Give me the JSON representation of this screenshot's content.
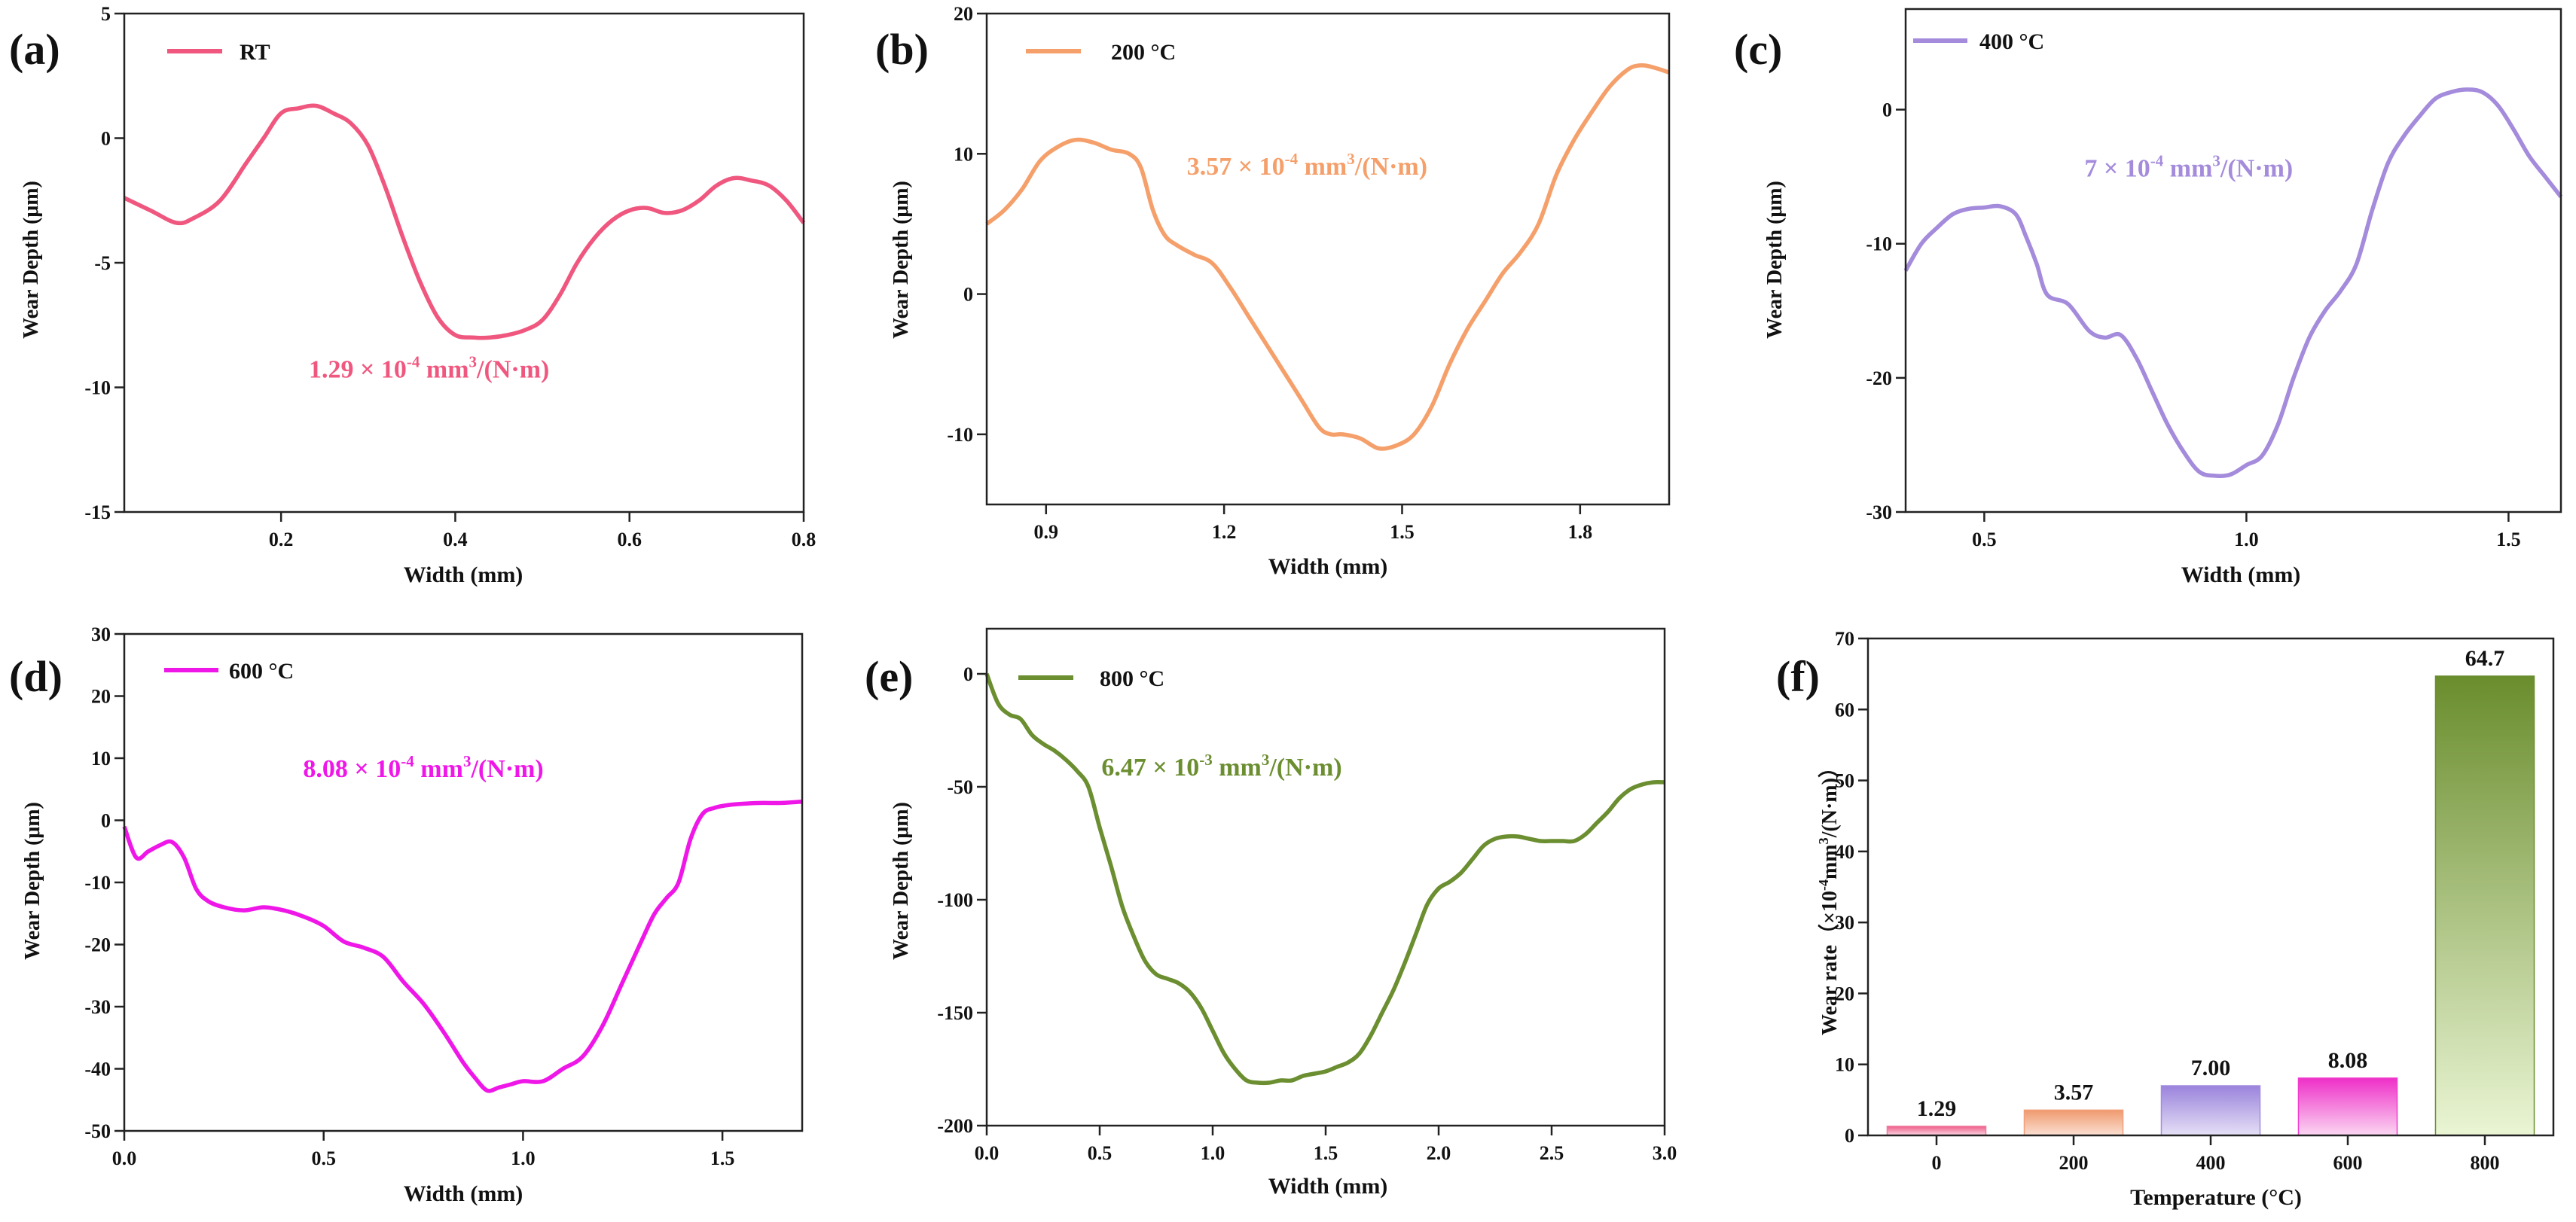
{
  "chart_data": [
    {
      "id": "a",
      "panel_label": "(a)",
      "type": "line",
      "title": "",
      "xlabel": "Width (mm)",
      "ylabel": "Wear Depth (μm)",
      "xlim": [
        0.02,
        0.8
      ],
      "ylim": [
        -15,
        5
      ],
      "xticks": [
        0.2,
        0.4,
        0.6,
        0.8
      ],
      "xtick_labels": [
        "0.2",
        "0.4",
        "0.6",
        "0.8"
      ],
      "yticks": [
        5,
        0,
        -5,
        -10,
        -15
      ],
      "ytick_labels": [
        "5",
        "0",
        "-5",
        "-10",
        "-15"
      ],
      "legend": "RT",
      "legend_position": "top-left",
      "annotation": {
        "mantissa": "1.29 × 10",
        "exp": "-4",
        "unit": " mm",
        "unit_exp": "3",
        "tail": "/(N·m)",
        "x": 0.37,
        "y": -9.6
      },
      "color": "#f0577f",
      "series": [
        {
          "name": "RT",
          "x": [
            0.02,
            0.05,
            0.08,
            0.1,
            0.13,
            0.16,
            0.18,
            0.2,
            0.22,
            0.24,
            0.26,
            0.28,
            0.3,
            0.32,
            0.34,
            0.36,
            0.38,
            0.4,
            0.42,
            0.44,
            0.46,
            0.48,
            0.5,
            0.52,
            0.54,
            0.56,
            0.58,
            0.6,
            0.62,
            0.64,
            0.66,
            0.68,
            0.7,
            0.72,
            0.74,
            0.76,
            0.78,
            0.8
          ],
          "y": [
            -2.4,
            -2.9,
            -3.4,
            -3.2,
            -2.5,
            -1.0,
            0.0,
            1.0,
            1.2,
            1.3,
            1.0,
            0.6,
            -0.3,
            -2.0,
            -4.0,
            -5.8,
            -7.2,
            -7.9,
            -8.0,
            -8.0,
            -7.9,
            -7.7,
            -7.3,
            -6.3,
            -5.0,
            -4.0,
            -3.3,
            -2.9,
            -2.8,
            -3.0,
            -2.9,
            -2.5,
            -1.9,
            -1.6,
            -1.7,
            -1.9,
            -2.5,
            -3.4
          ]
        }
      ]
    },
    {
      "id": "b",
      "panel_label": "(b)",
      "type": "line",
      "title": "",
      "xlabel": "Width (mm)",
      "ylabel": "Wear Depth (μm)",
      "xlim": [
        0.8,
        1.95
      ],
      "ylim": [
        -15,
        20
      ],
      "xticks": [
        0.9,
        1.2,
        1.5,
        1.8
      ],
      "xtick_labels": [
        "0.9",
        "1.2",
        "1.5",
        "1.8"
      ],
      "yticks": [
        20,
        10,
        0,
        -10
      ],
      "ytick_labels": [
        "20",
        "10",
        "0",
        "-10"
      ],
      "legend": "200 °C",
      "legend_position": "top-left",
      "annotation": {
        "mantissa": "3.57 × 10",
        "exp": "-4",
        "unit": " mm",
        "unit_exp": "3",
        "tail": "/(N·m)",
        "x": 1.34,
        "y": 8.5
      },
      "color": "#f5a06b",
      "series": [
        {
          "name": "200 °C",
          "x": [
            0.8,
            0.83,
            0.86,
            0.89,
            0.92,
            0.95,
            0.98,
            1.01,
            1.04,
            1.06,
            1.08,
            1.1,
            1.12,
            1.15,
            1.18,
            1.21,
            1.24,
            1.27,
            1.3,
            1.33,
            1.36,
            1.38,
            1.4,
            1.43,
            1.46,
            1.49,
            1.52,
            1.55,
            1.58,
            1.61,
            1.64,
            1.67,
            1.7,
            1.73,
            1.76,
            1.79,
            1.82,
            1.85,
            1.88,
            1.9,
            1.92,
            1.95
          ],
          "y": [
            5.0,
            6.0,
            7.5,
            9.5,
            10.5,
            11.0,
            10.8,
            10.3,
            10.0,
            9.0,
            6.0,
            4.2,
            3.5,
            2.8,
            2.2,
            0.5,
            -1.5,
            -3.5,
            -5.5,
            -7.5,
            -9.5,
            -10.0,
            -10.0,
            -10.3,
            -11.0,
            -10.8,
            -10.0,
            -8.0,
            -5.0,
            -2.5,
            -0.5,
            1.5,
            3.0,
            5.0,
            8.5,
            11.0,
            13.0,
            14.8,
            16.0,
            16.3,
            16.2,
            15.8
          ]
        }
      ]
    },
    {
      "id": "c",
      "panel_label": "(c)",
      "type": "line",
      "title": "",
      "xlabel": "Width (mm)",
      "ylabel": "Wear Depth (μm)",
      "xlim": [
        0.35,
        1.6
      ],
      "ylim": [
        -30,
        7.5
      ],
      "xticks": [
        0.5,
        1.0,
        1.5
      ],
      "xtick_labels": [
        "0.5",
        "1.0",
        "1.5"
      ],
      "yticks": [
        0,
        -10,
        -20,
        -30
      ],
      "ytick_labels": [
        "0",
        "-10",
        "-20",
        "-30"
      ],
      "legend": "400 °C",
      "legend_position": "top-left",
      "annotation": {
        "mantissa": "7 × 10",
        "exp": "-4",
        "unit": " mm",
        "unit_exp": "3",
        "tail": "/(N·m)",
        "x": 0.89,
        "y": -5.0
      },
      "color": "#a48bdb",
      "series": [
        {
          "name": "400 °C",
          "x": [
            0.35,
            0.38,
            0.41,
            0.44,
            0.47,
            0.5,
            0.53,
            0.56,
            0.58,
            0.6,
            0.62,
            0.66,
            0.7,
            0.73,
            0.76,
            0.79,
            0.82,
            0.85,
            0.88,
            0.91,
            0.94,
            0.97,
            1.0,
            1.03,
            1.06,
            1.09,
            1.12,
            1.15,
            1.18,
            1.21,
            1.24,
            1.27,
            1.3,
            1.33,
            1.36,
            1.39,
            1.42,
            1.45,
            1.48,
            1.51,
            1.54,
            1.57,
            1.6
          ],
          "y": [
            -12.0,
            -10.0,
            -8.8,
            -7.8,
            -7.4,
            -7.3,
            -7.2,
            -7.8,
            -9.5,
            -11.5,
            -13.8,
            -14.5,
            -16.5,
            -17.0,
            -16.8,
            -18.5,
            -21.0,
            -23.5,
            -25.5,
            -27.0,
            -27.3,
            -27.2,
            -26.5,
            -25.8,
            -23.5,
            -20.0,
            -17.0,
            -15.0,
            -13.5,
            -11.5,
            -7.5,
            -4.0,
            -2.0,
            -0.5,
            0.8,
            1.3,
            1.5,
            1.3,
            0.3,
            -1.5,
            -3.5,
            -5.0,
            -6.5
          ]
        }
      ]
    },
    {
      "id": "d",
      "panel_label": "(d)",
      "type": "line",
      "title": "",
      "xlabel": "Width (mm)",
      "ylabel": "Wear Depth (μm)",
      "xlim": [
        0.0,
        1.7
      ],
      "ylim": [
        -50,
        30
      ],
      "xticks": [
        0.0,
        0.5,
        1.0,
        1.5
      ],
      "xtick_labels": [
        "0.0",
        "0.5",
        "1.0",
        "1.5"
      ],
      "yticks": [
        30,
        20,
        10,
        0,
        -10,
        -20,
        -30,
        -40,
        -50
      ],
      "ytick_labels": [
        "30",
        "20",
        "10",
        "0",
        "-10",
        "-20",
        "-30",
        "-40",
        "-50"
      ],
      "legend": "600 °C",
      "legend_position": "top-left",
      "annotation": {
        "mantissa": "8.08 × 10",
        "exp": "-4",
        "unit": " mm",
        "unit_exp": "3",
        "tail": "/(N·m)",
        "x": 0.75,
        "y": 7.0
      },
      "color": "#ef16e8",
      "series": [
        {
          "name": "600 °C",
          "x": [
            0.0,
            0.03,
            0.06,
            0.09,
            0.12,
            0.15,
            0.18,
            0.21,
            0.25,
            0.3,
            0.35,
            0.4,
            0.45,
            0.5,
            0.55,
            0.6,
            0.65,
            0.7,
            0.75,
            0.8,
            0.85,
            0.88,
            0.91,
            0.94,
            0.97,
            1.0,
            1.05,
            1.1,
            1.15,
            1.2,
            1.25,
            1.3,
            1.33,
            1.36,
            1.39,
            1.42,
            1.45,
            1.48,
            1.52,
            1.56,
            1.6,
            1.65,
            1.7
          ],
          "y": [
            -1.0,
            -6.0,
            -5.0,
            -4.0,
            -3.5,
            -6.0,
            -11.0,
            -13.0,
            -14.0,
            -14.5,
            -14.0,
            -14.5,
            -15.5,
            -17.0,
            -19.5,
            -20.5,
            -22.0,
            -26.0,
            -29.5,
            -34.0,
            -39.0,
            -41.5,
            -43.5,
            -43.0,
            -42.5,
            -42.0,
            -42.0,
            -40.0,
            -38.0,
            -33.0,
            -26.0,
            -19.0,
            -15.0,
            -12.5,
            -10.0,
            -3.0,
            1.0,
            2.0,
            2.5,
            2.7,
            2.8,
            2.8,
            3.0
          ]
        }
      ]
    },
    {
      "id": "e",
      "panel_label": "(e)",
      "type": "line",
      "title": "",
      "xlabel": "Width (mm)",
      "ylabel": "Wear Depth (μm)",
      "xlim": [
        0.0,
        3.0
      ],
      "ylim": [
        -200,
        20
      ],
      "xticks": [
        0.0,
        0.5,
        1.0,
        1.5,
        2.0,
        2.5,
        3.0
      ],
      "xtick_labels": [
        "0.0",
        "0.5",
        "1.0",
        "1.5",
        "2.0",
        "2.5",
        "3.0"
      ],
      "yticks": [
        0,
        -50,
        -100,
        -150,
        -200
      ],
      "ytick_labels": [
        "0",
        "-50",
        "-100",
        "-150",
        "-200"
      ],
      "legend": "800 °C",
      "legend_position": "top-left",
      "annotation": {
        "mantissa": "6.47 × 10",
        "exp": "-3",
        "unit": " mm",
        "unit_exp": "3",
        "tail": "/(N·m)",
        "x": 1.04,
        "y": -45
      },
      "color": "#6b8e30",
      "series": [
        {
          "name": "800 °C",
          "x": [
            0.0,
            0.05,
            0.1,
            0.15,
            0.2,
            0.25,
            0.3,
            0.35,
            0.4,
            0.45,
            0.5,
            0.55,
            0.6,
            0.65,
            0.7,
            0.75,
            0.8,
            0.85,
            0.9,
            0.95,
            1.0,
            1.05,
            1.1,
            1.15,
            1.2,
            1.25,
            1.3,
            1.35,
            1.4,
            1.45,
            1.5,
            1.55,
            1.6,
            1.65,
            1.7,
            1.75,
            1.8,
            1.85,
            1.9,
            1.95,
            2.0,
            2.05,
            2.1,
            2.15,
            2.2,
            2.25,
            2.3,
            2.35,
            2.4,
            2.45,
            2.5,
            2.55,
            2.6,
            2.65,
            2.7,
            2.75,
            2.8,
            2.85,
            2.9,
            2.95,
            3.0
          ],
          "y": [
            0,
            -13,
            -18,
            -20,
            -27,
            -31,
            -34,
            -38,
            -43,
            -50,
            -68,
            -85,
            -103,
            -116,
            -127,
            -133,
            -135,
            -137,
            -141,
            -148,
            -158,
            -168,
            -175,
            -180,
            -181,
            -181,
            -180,
            -180,
            -178,
            -177,
            -176,
            -174,
            -172,
            -168,
            -160,
            -150,
            -140,
            -128,
            -115,
            -102,
            -95,
            -92,
            -88,
            -82,
            -76,
            -73,
            -72,
            -72,
            -73,
            -74,
            -74,
            -74,
            -74,
            -71,
            -66,
            -61,
            -55,
            -51,
            -49,
            -48,
            -48
          ]
        }
      ]
    },
    {
      "id": "f",
      "panel_label": "(f)",
      "type": "bar",
      "title": "",
      "xlabel": "Temperature (°C)",
      "ylabel_parts": {
        "pre": "Wear rate（×10",
        "exp": "-4",
        "mid": "mm",
        "exp2": "3",
        "post": "/(N·m)）"
      },
      "categories": [
        "0",
        "200",
        "400",
        "600",
        "800"
      ],
      "values": [
        1.29,
        3.57,
        7.0,
        8.08,
        64.7
      ],
      "value_labels": [
        "1.29",
        "3.57",
        "7.00",
        "8.08",
        "64.7"
      ],
      "colors": [
        "#f07a9c",
        "#f2a07a",
        "#a38ce0",
        "#f03ccc",
        "#6b8e30"
      ],
      "ylim": [
        0,
        70
      ],
      "yticks": [
        0,
        10,
        20,
        30,
        40,
        50,
        60,
        70
      ],
      "ytick_labels": [
        "0",
        "10",
        "20",
        "30",
        "40",
        "50",
        "60",
        "70"
      ]
    }
  ]
}
